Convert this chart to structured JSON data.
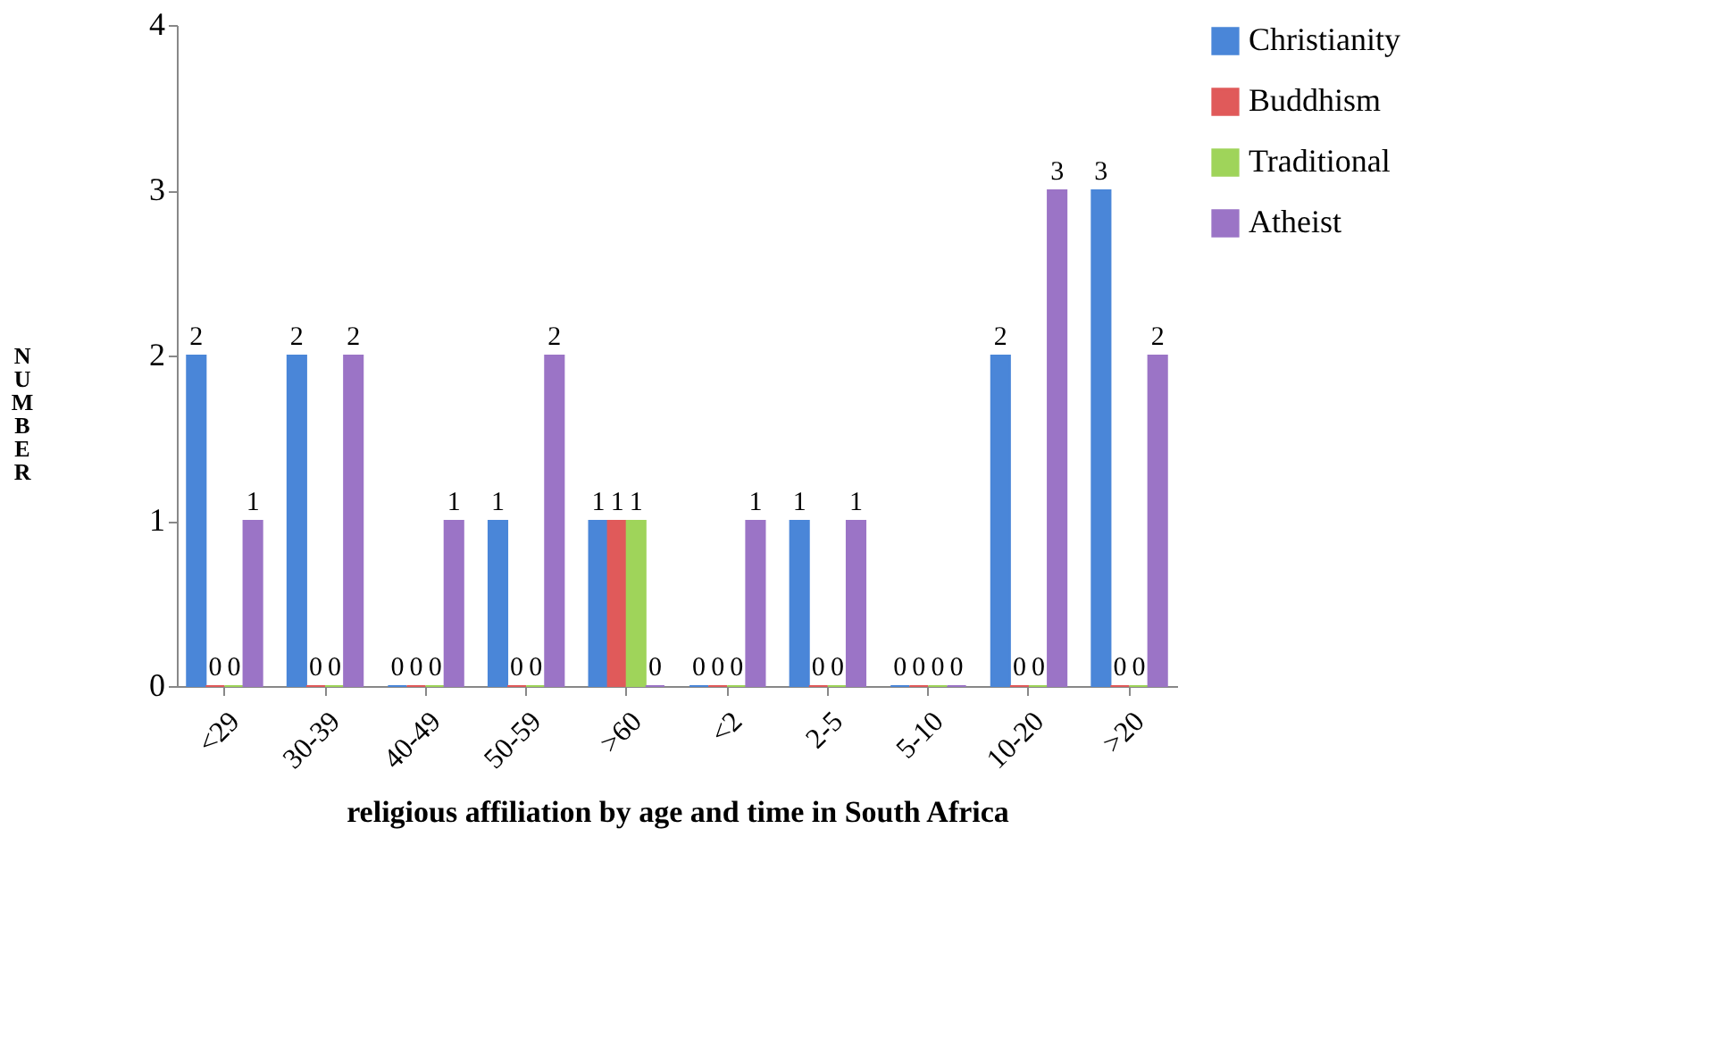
{
  "chart_data": {
    "type": "bar",
    "xlabel": "religious affiliation by age and time in South Africa",
    "ylabel": "NUMBER",
    "categories": [
      "<29",
      "30-39",
      "40-49",
      "50-59",
      ">60",
      "<2",
      "2-5",
      "5-10",
      "10-20",
      ">20"
    ],
    "series": [
      {
        "name": "Christianity",
        "color": "#4a86d8",
        "values": [
          2,
          2,
          0,
          1,
          1,
          0,
          1,
          0,
          2,
          3
        ]
      },
      {
        "name": "Buddhism",
        "color": "#e05a5a",
        "values": [
          0,
          0,
          0,
          0,
          1,
          0,
          0,
          0,
          0,
          0
        ]
      },
      {
        "name": "Traditional",
        "color": "#9fd45a",
        "values": [
          0,
          0,
          0,
          0,
          1,
          0,
          0,
          0,
          0,
          0
        ]
      },
      {
        "name": "Atheist",
        "color": "#9b74c6",
        "values": [
          1,
          2,
          1,
          2,
          0,
          1,
          1,
          0,
          3,
          2
        ]
      }
    ],
    "ylim": [
      0,
      4
    ],
    "yticks": [
      0,
      1,
      2,
      3,
      4
    ],
    "grid": false,
    "legend": "right",
    "data_labels": true
  }
}
